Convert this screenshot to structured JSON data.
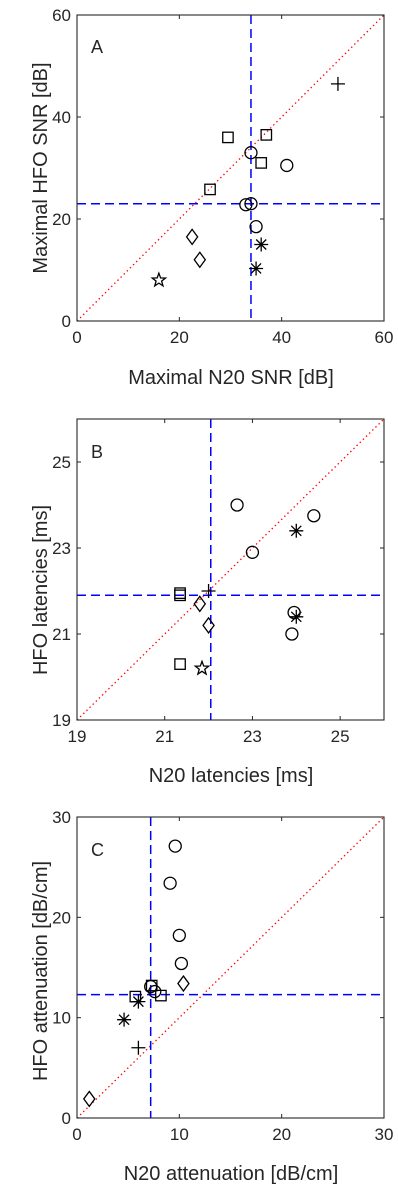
{
  "colors": {
    "axis": "#262626",
    "marker": "#000000",
    "threshold": "#0000ff",
    "identity": "#ff0000"
  },
  "chart_data": [
    {
      "type": "scatter",
      "panel_label": "A",
      "xlabel": "Maximal N20 SNR [dB]",
      "ylabel": "Maximal HFO SNR [dB]",
      "xlim": [
        0,
        60
      ],
      "ylim": [
        0,
        60
      ],
      "xticks": [
        0,
        20,
        40,
        60
      ],
      "yticks": [
        0,
        20,
        40,
        60
      ],
      "grid": false,
      "threshold_lines": {
        "x": 34,
        "y": 23
      },
      "identity_line": true,
      "points": [
        {
          "marker": "plus",
          "x": 51,
          "y": 46.5
        },
        {
          "marker": "square",
          "x": 29.5,
          "y": 36
        },
        {
          "marker": "square",
          "x": 37,
          "y": 36.5
        },
        {
          "marker": "square",
          "x": 36,
          "y": 31
        },
        {
          "marker": "square",
          "x": 26,
          "y": 25.8
        },
        {
          "marker": "circle",
          "x": 34,
          "y": 33
        },
        {
          "marker": "circle",
          "x": 41,
          "y": 30.5
        },
        {
          "marker": "circle",
          "x": 33,
          "y": 22.8
        },
        {
          "marker": "circle",
          "x": 34,
          "y": 23
        },
        {
          "marker": "circle",
          "x": 35,
          "y": 18.5
        },
        {
          "marker": "diamond",
          "x": 22.5,
          "y": 16.5
        },
        {
          "marker": "diamond",
          "x": 24,
          "y": 12
        },
        {
          "marker": "asterisk",
          "x": 36,
          "y": 15
        },
        {
          "marker": "asterisk",
          "x": 35,
          "y": 10.3
        },
        {
          "marker": "pentagram",
          "x": 16,
          "y": 8
        }
      ]
    },
    {
      "type": "scatter",
      "panel_label": "B",
      "xlabel": "N20 latencies [ms]",
      "ylabel": "HFO latencies [ms]",
      "xlim": [
        19,
        26
      ],
      "ylim": [
        19,
        26
      ],
      "xticks": [
        19,
        21,
        23,
        25
      ],
      "yticks": [
        19,
        21,
        23,
        25
      ],
      "grid": false,
      "threshold_lines": {
        "x": 22.05,
        "y": 21.9
      },
      "identity_line": true,
      "points": [
        {
          "marker": "circle",
          "x": 22.65,
          "y": 24.0
        },
        {
          "marker": "circle",
          "x": 24.4,
          "y": 23.75
        },
        {
          "marker": "circle",
          "x": 23.0,
          "y": 22.9
        },
        {
          "marker": "circle",
          "x": 23.95,
          "y": 21.5
        },
        {
          "marker": "circle",
          "x": 23.9,
          "y": 21.0
        },
        {
          "marker": "asterisk",
          "x": 24.0,
          "y": 23.4
        },
        {
          "marker": "asterisk",
          "x": 24.0,
          "y": 21.4
        },
        {
          "marker": "square",
          "x": 21.35,
          "y": 21.9
        },
        {
          "marker": "square",
          "x": 21.35,
          "y": 21.95
        },
        {
          "marker": "square",
          "x": 21.35,
          "y": 20.3
        },
        {
          "marker": "diamond",
          "x": 21.8,
          "y": 21.7
        },
        {
          "marker": "diamond",
          "x": 22.0,
          "y": 21.2
        },
        {
          "marker": "plus",
          "x": 22.0,
          "y": 22.0
        },
        {
          "marker": "pentagram",
          "x": 21.85,
          "y": 20.2
        }
      ]
    },
    {
      "type": "scatter",
      "panel_label": "C",
      "xlabel": "N20 attenuation [dB/cm]",
      "ylabel": "HFO attenuation [dB/cm]",
      "xlim": [
        0,
        30
      ],
      "ylim": [
        0,
        30
      ],
      "xticks": [
        0,
        10,
        20,
        30
      ],
      "yticks": [
        0,
        10,
        20,
        30
      ],
      "grid": false,
      "threshold_lines": {
        "x": 7.2,
        "y": 12.3
      },
      "identity_line": true,
      "points": [
        {
          "marker": "circle",
          "x": 9.6,
          "y": 27.1
        },
        {
          "marker": "circle",
          "x": 9.1,
          "y": 23.4
        },
        {
          "marker": "circle",
          "x": 10.0,
          "y": 18.2
        },
        {
          "marker": "circle",
          "x": 10.2,
          "y": 15.4
        },
        {
          "marker": "circle",
          "x": 7.2,
          "y": 13.1
        },
        {
          "marker": "circle",
          "x": 7.6,
          "y": 12.6
        },
        {
          "marker": "diamond",
          "x": 10.4,
          "y": 13.4
        },
        {
          "marker": "diamond",
          "x": 1.2,
          "y": 1.9
        },
        {
          "marker": "square",
          "x": 5.7,
          "y": 12.1
        },
        {
          "marker": "square",
          "x": 7.3,
          "y": 13.2
        },
        {
          "marker": "square",
          "x": 8.2,
          "y": 12.2
        },
        {
          "marker": "asterisk",
          "x": 6.0,
          "y": 11.6
        },
        {
          "marker": "asterisk",
          "x": 4.6,
          "y": 9.8
        },
        {
          "marker": "plus",
          "x": 6.0,
          "y": 7.0
        }
      ]
    }
  ]
}
